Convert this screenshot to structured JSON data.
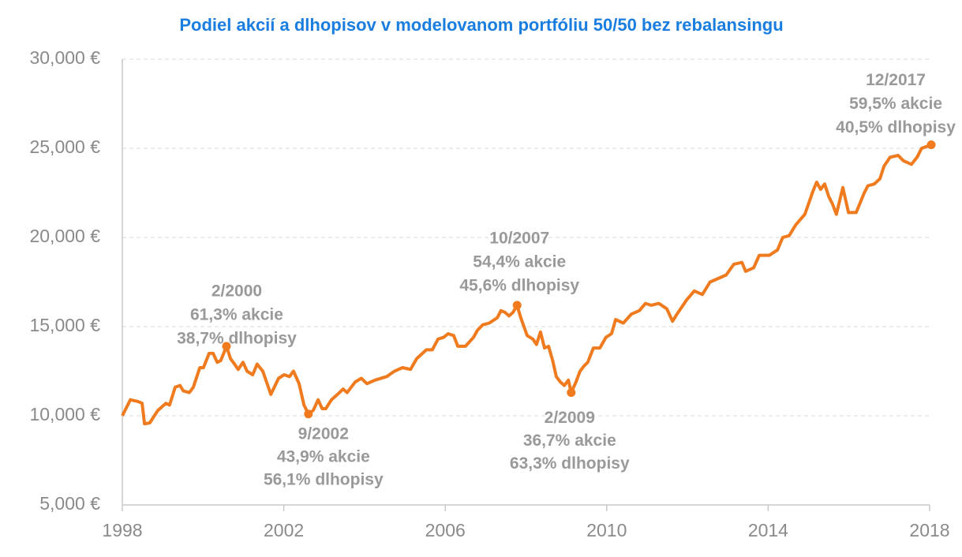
{
  "chart_data": {
    "type": "line",
    "title": "Podiel akcií a dlhopisov v modelovanom portfóliu 50/50 bez rebalansingu",
    "xlim": [
      1998,
      2018
    ],
    "xticks": [
      1998,
      2002,
      2006,
      2010,
      2014,
      2018
    ],
    "ylim": [
      5000,
      30000
    ],
    "yticks": [
      {
        "value": 5000,
        "label": "5,000 €"
      },
      {
        "value": 10000,
        "label": "10,000 €"
      },
      {
        "value": 15000,
        "label": "15,000 €"
      },
      {
        "value": 20000,
        "label": "20,000 €"
      },
      {
        "value": 25000,
        "label": "25,000 €"
      },
      {
        "value": 30000,
        "label": "30,000 €"
      }
    ],
    "grid": true,
    "color": "#f07a1e",
    "x": [
      1998.0,
      1998.2,
      1998.39,
      1998.49,
      1998.55,
      1998.68,
      1998.88,
      1999.08,
      1999.17,
      1999.31,
      1999.43,
      1999.51,
      1999.66,
      1999.76,
      1999.92,
      2000.01,
      2000.15,
      2000.25,
      2000.35,
      2000.44,
      2000.58,
      2000.68,
      2000.78,
      2000.87,
      2000.99,
      2001.09,
      2001.23,
      2001.34,
      2001.48,
      2001.68,
      2001.87,
      2002.01,
      2002.14,
      2002.24,
      2002.38,
      2002.5,
      2002.61,
      2002.73,
      2002.85,
      2002.95,
      2003.04,
      2003.18,
      2003.38,
      2003.47,
      2003.57,
      2003.77,
      2003.92,
      2004.06,
      2004.26,
      2004.55,
      2004.74,
      2004.94,
      2005.14,
      2005.29,
      2005.53,
      2005.68,
      2005.82,
      2005.96,
      2006.07,
      2006.21,
      2006.31,
      2006.5,
      2006.7,
      2006.8,
      2006.93,
      2007.09,
      2007.29,
      2007.38,
      2007.48,
      2007.58,
      2007.68,
      2007.78,
      2007.87,
      2008.03,
      2008.17,
      2008.26,
      2008.36,
      2008.46,
      2008.56,
      2008.66,
      2008.75,
      2008.85,
      2008.95,
      2009.05,
      2009.12,
      2009.24,
      2009.34,
      2009.44,
      2009.53,
      2009.67,
      2009.83,
      2009.98,
      2010.12,
      2010.22,
      2010.41,
      2010.61,
      2010.81,
      2010.96,
      2011.1,
      2011.29,
      2011.49,
      2011.63,
      2011.74,
      2011.98,
      2012.17,
      2012.37,
      2012.56,
      2012.76,
      2012.96,
      2013.15,
      2013.35,
      2013.44,
      2013.64,
      2013.78,
      2014.03,
      2014.23,
      2014.36,
      2014.52,
      2014.68,
      2014.91,
      2015.11,
      2015.2,
      2015.3,
      2015.4,
      2015.5,
      2015.59,
      2015.69,
      2015.85,
      2015.99,
      2016.18,
      2016.38,
      2016.47,
      2016.63,
      2016.77,
      2016.87,
      2017.02,
      2017.22,
      2017.35,
      2017.55,
      2017.69,
      2017.8,
      2018.04
    ],
    "values": [
      10000,
      10900,
      10800,
      10700,
      9550,
      9600,
      10300,
      10700,
      10600,
      11600,
      11700,
      11400,
      11300,
      11600,
      12700,
      12700,
      13500,
      13500,
      13000,
      13100,
      13900,
      13200,
      12900,
      12600,
      13000,
      12500,
      12300,
      12900,
      12500,
      11200,
      12100,
      12300,
      12200,
      12500,
      11800,
      10600,
      10100,
      10300,
      10900,
      10400,
      10400,
      10900,
      11300,
      11500,
      11300,
      11900,
      12100,
      11800,
      12000,
      12200,
      12500,
      12700,
      12600,
      13200,
      13700,
      13700,
      14300,
      14400,
      14600,
      14500,
      13900,
      13900,
      14400,
      14800,
      15100,
      15200,
      15500,
      15900,
      15800,
      15600,
      15800,
      16200,
      15500,
      14500,
      14300,
      14000,
      14700,
      13800,
      13900,
      13100,
      12200,
      11900,
      11700,
      12000,
      11300,
      11900,
      12500,
      12800,
      13000,
      13800,
      13800,
      14400,
      14600,
      15400,
      15200,
      15700,
      15900,
      16300,
      16200,
      16300,
      16000,
      15300,
      15700,
      16500,
      17000,
      16800,
      17500,
      17700,
      17900,
      18500,
      18600,
      18100,
      18300,
      19000,
      19000,
      19300,
      20000,
      20100,
      20700,
      21300,
      22600,
      23100,
      22700,
      23000,
      22300,
      21900,
      21300,
      22800,
      21400,
      21400,
      22500,
      22900,
      23000,
      23300,
      24000,
      24500,
      24600,
      24300,
      24100,
      24500,
      25000,
      25200
    ],
    "annotations": [
      {
        "x": 2000.58,
        "y": 13900,
        "lines": [
          "2/2000",
          "61,3% akcie",
          "38,7% dlhopisy"
        ]
      },
      {
        "x": 2002.61,
        "y": 10100,
        "lines": [
          "9/2002",
          "43,9% akcie",
          "56,1% dlhopisy"
        ]
      },
      {
        "x": 2007.78,
        "y": 16200,
        "lines": [
          "10/2007",
          "54,4% akcie",
          "45,6% dlhopisy"
        ]
      },
      {
        "x": 2009.12,
        "y": 11300,
        "lines": [
          "2/2009",
          "36,7% akcie",
          "63,3% dlhopisy"
        ]
      },
      {
        "x": 2018.04,
        "y": 25200,
        "lines": [
          "12/2017",
          "59,5% akcie",
          "40,5% dlhopisy"
        ]
      }
    ]
  }
}
